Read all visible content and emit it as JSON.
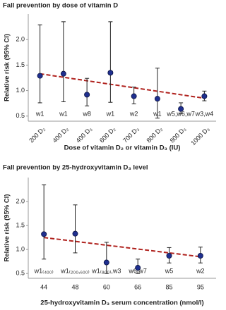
{
  "chart_data": [
    {
      "type": "errorbar",
      "title": "Fall prevention by dose of vitamin D",
      "ylabel": "Relative risk (95% CI)",
      "xlabel": "Dose of vitamin D₂ or vitamin D₃ (IU)",
      "categories": [
        "200 D₂",
        "400 D₂",
        "400 D₃",
        "600 D₂",
        "700 D₃",
        "800 D₂",
        "800 D₃",
        "1000 D₃"
      ],
      "study_labels": [
        "w1",
        "w1",
        "w8",
        "w1",
        "w2",
        "w1",
        "w5,w6,w7",
        "w3,w4"
      ],
      "values": [
        1.29,
        1.33,
        0.92,
        1.35,
        0.89,
        0.84,
        0.64,
        0.89
      ],
      "lower": [
        0.76,
        0.78,
        0.7,
        0.77,
        0.74,
        0.46,
        0.55,
        0.8
      ],
      "upper": [
        2.29,
        2.35,
        1.24,
        2.35,
        1.07,
        1.44,
        0.76,
        0.99
      ],
      "color": "#1f2f8f",
      "trend": [
        1.33,
        0.85
      ],
      "trend_color": "#b0221e",
      "ylim": [
        0.4,
        2.5
      ],
      "yticks": [
        0.5,
        {
          "value": 1.0,
          "label": "1.0"
        },
        1.5,
        {
          "value": 2.0,
          "label": "2.0"
        }
      ]
    },
    {
      "type": "errorbar",
      "title": "Fall prevention by 25-hydroxyvitamin D₃ level",
      "ylabel": "Relative risk (95% CI)",
      "xlabel": "25-hydroxyvitamin D₃ serum concentration (nmol/l)",
      "categories": [
        "44",
        "48",
        "60",
        "66",
        "85",
        "95"
      ],
      "study_labels": [
        "w1₍₄₀₀₎",
        "w1₍₂₀₀,₆₀₀₎",
        "w1₍₈₀₀₎,w3",
        "w6,w7",
        "w5",
        "w2"
      ],
      "values": [
        1.32,
        1.33,
        0.73,
        0.62,
        0.87,
        0.87
      ],
      "lower": [
        0.8,
        0.93,
        0.5,
        0.5,
        0.72,
        0.72
      ],
      "upper": [
        2.35,
        1.93,
        1.15,
        0.8,
        1.04,
        1.05
      ],
      "color": "#1f2f8f",
      "trend": [
        1.25,
        0.85
      ],
      "trend_color": "#b0221e",
      "ylim": [
        0.4,
        2.5
      ],
      "yticks": [
        0.5,
        {
          "value": 1.0,
          "label": "1.0"
        },
        1.5,
        {
          "value": 2.0,
          "label": "2.0"
        }
      ]
    }
  ]
}
